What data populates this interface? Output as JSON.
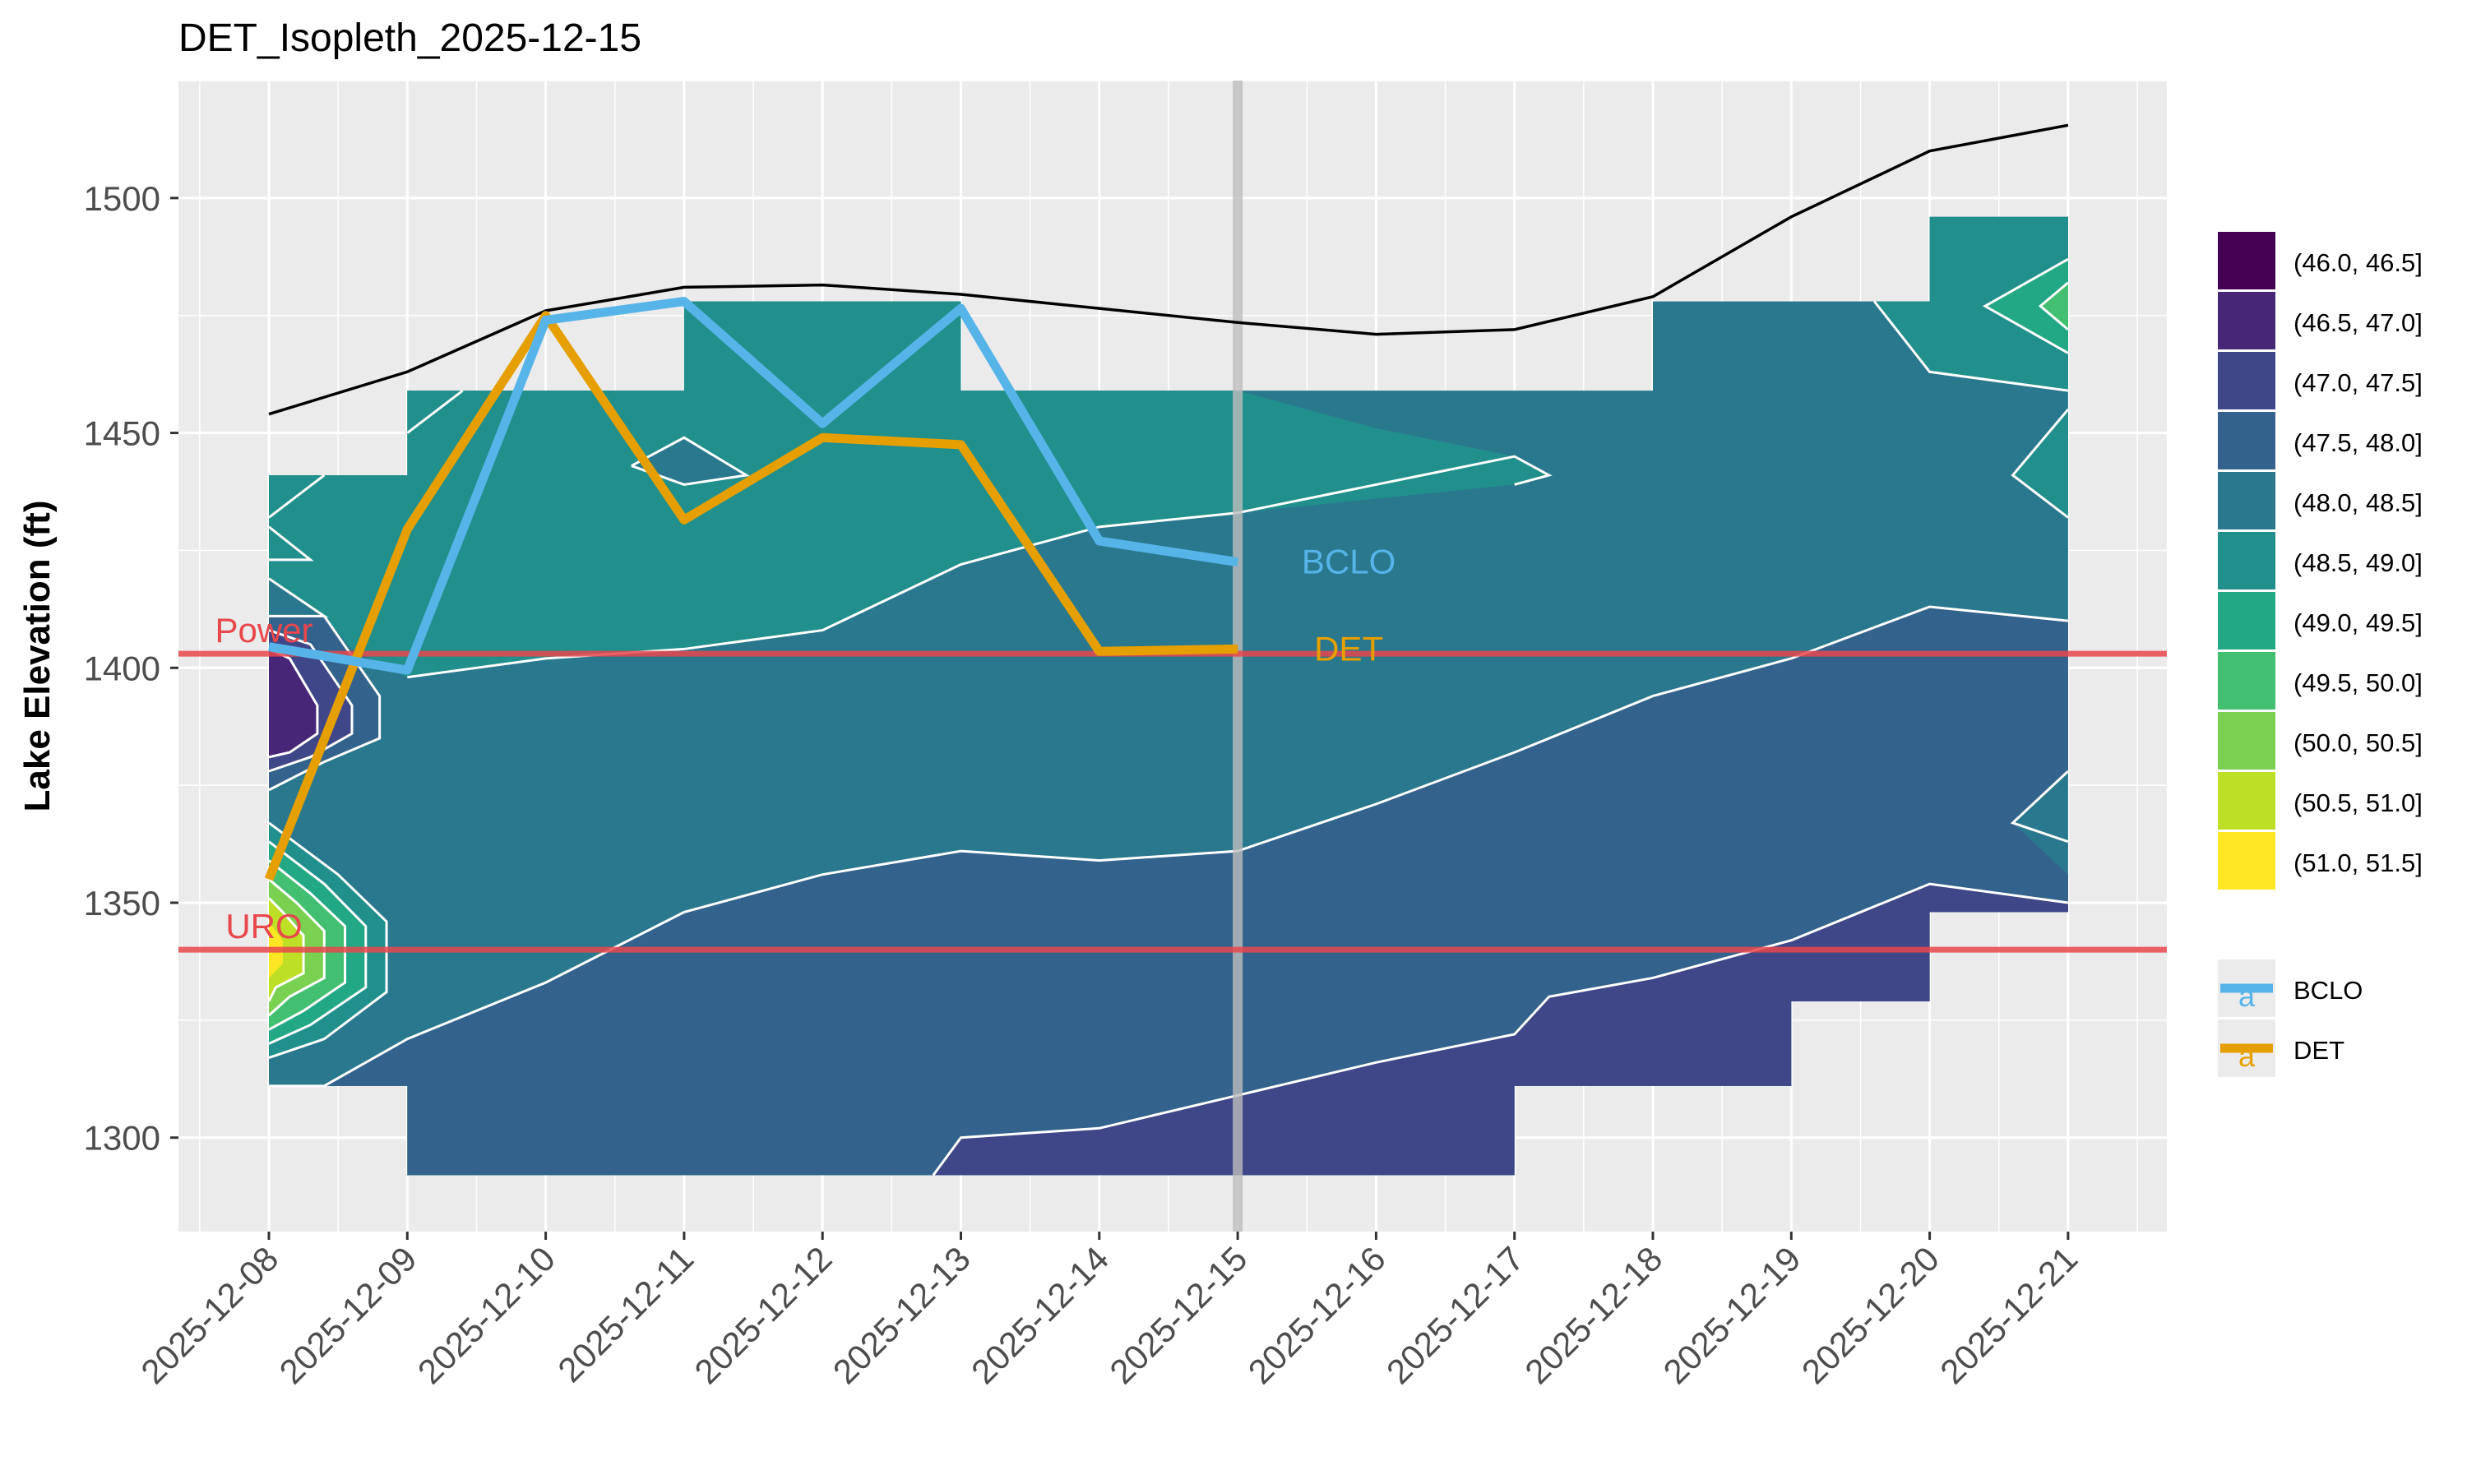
{
  "chart_data": {
    "type": "contour",
    "title": "DET_Isopleth_2025-12-15",
    "xlabel": "",
    "ylabel": "Lake Elevation (ft)",
    "x_ticks": [
      "2025-12-08",
      "2025-12-09",
      "2025-12-10",
      "2025-12-11",
      "2025-12-12",
      "2025-12-13",
      "2025-12-14",
      "2025-12-15",
      "2025-12-16",
      "2025-12-17",
      "2025-12-18",
      "2025-12-19",
      "2025-12-20",
      "2025-12-21"
    ],
    "ylim": [
      1280,
      1525
    ],
    "y_ticks": [
      1300,
      1350,
      1400,
      1450,
      1500
    ],
    "current_date": "2025-12-15",
    "reference_lines": [
      {
        "label": "Power",
        "value": 1403,
        "color": "#e8474c"
      },
      {
        "label": "URO",
        "value": 1340,
        "color": "#e8474c"
      }
    ],
    "surface_elevation": [
      1454,
      1463,
      1476,
      1481,
      1481.5,
      1479.5,
      1476.5,
      1473.5,
      1471,
      1472,
      1479,
      1496,
      1510,
      1515.5
    ],
    "series": [
      {
        "name": "BCLO",
        "color": "#56b4e9",
        "dates_index": [
          0,
          1,
          2,
          3,
          4,
          5,
          6,
          7
        ],
        "values": [
          1404.5,
          1399.5,
          1474,
          1478,
          1452,
          1476.5,
          1427,
          1422.5
        ],
        "label_text": "BCLO"
      },
      {
        "name": "DET",
        "color": "#e69f00",
        "dates_index": [
          0,
          1,
          2,
          3,
          4,
          5,
          6,
          7
        ],
        "values": [
          1355,
          1429.5,
          1475,
          1431.5,
          1449,
          1447.5,
          1403.5,
          1404
        ],
        "label_text": "DET"
      }
    ],
    "fill_legend": [
      {
        "label": "(46.0, 46.5]",
        "color": "#440154"
      },
      {
        "label": "(46.5, 47.0]",
        "color": "#482677"
      },
      {
        "label": "(47.0, 47.5]",
        "color": "#3f4788"
      },
      {
        "label": "(47.5, 48.0]",
        "color": "#33638d"
      },
      {
        "label": "(48.0, 48.5]",
        "color": "#2a788e"
      },
      {
        "label": "(48.5, 49.0]",
        "color": "#21908d"
      },
      {
        "label": "(49.0, 49.5]",
        "color": "#22a884"
      },
      {
        "label": "(49.5, 50.0]",
        "color": "#43bf71"
      },
      {
        "label": "(50.0, 50.5]",
        "color": "#7ad151"
      },
      {
        "label": "(50.5, 51.0]",
        "color": "#bddf26"
      },
      {
        "label": "(51.0, 51.5]",
        "color": "#fde725"
      }
    ],
    "line_legend": [
      {
        "label": "BCLO",
        "color": "#56b4e9",
        "key_glyph": "a"
      },
      {
        "label": "DET",
        "color": "#e69f00",
        "key_glyph": "a"
      }
    ]
  }
}
